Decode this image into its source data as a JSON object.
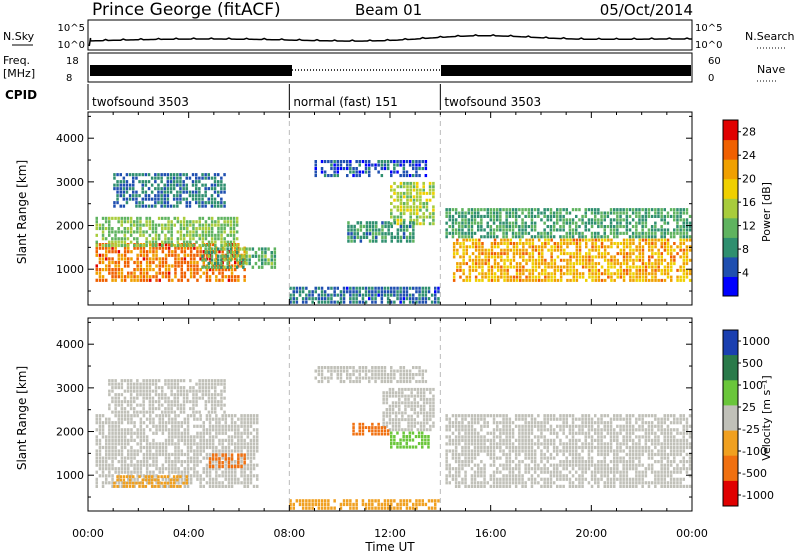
{
  "header": {
    "station": "Prince George (fitACF)",
    "beam": "Beam 01",
    "date": "05/Oct/2014"
  },
  "status_panel": {
    "nsky_label": "N.Sky",
    "nsky_ticks": [
      "10^5",
      "10^0"
    ],
    "nsearch_label": "N.Search",
    "freq_label": "Freq.",
    "freq_unit": "[MHz]",
    "freq_ticks": [
      "18",
      "8"
    ],
    "nave_ticks": [
      "60",
      "0"
    ],
    "nave_label": "Nave",
    "cpid_label": "CPID"
  },
  "cpid_segments": [
    {
      "label": "twofsound 3503",
      "start": "00:00",
      "end": "08:00"
    },
    {
      "label": "normal (fast) 151",
      "start": "08:00",
      "end": "14:00"
    },
    {
      "label": "twofsound 3503",
      "start": "14:00",
      "end": "24:00"
    }
  ],
  "colors": {
    "power_scale": [
      "#0000ff",
      "#1f4fb0",
      "#2f8f6f",
      "#5fb35f",
      "#a8cc3c",
      "#f0d000",
      "#f0a000",
      "#f06000",
      "#e00000"
    ],
    "velocity_scale": [
      "#1a3fb0",
      "#2a7a4a",
      "#6ac63a",
      "#c0c0b8",
      "#f0a020",
      "#f07010",
      "#e00000"
    ],
    "velocity_ground": "#c0c0b8"
  },
  "chart_data": [
    {
      "type": "heatmap",
      "name": "Power",
      "xlabel": "Time UT",
      "ylabel": "Slant Range [km]",
      "x_ticks": [
        "00:00",
        "04:00",
        "08:00",
        "12:00",
        "16:00",
        "20:00",
        "00:00"
      ],
      "xlim_hours": [
        0,
        24
      ],
      "y_ticks": [
        1000,
        2000,
        3000,
        4000
      ],
      "ylim": [
        180,
        4600
      ],
      "colorbar_label": "Power [dB]",
      "colorbar_ticks": [
        4,
        8,
        12,
        16,
        20,
        24,
        28
      ],
      "colorbar_range": [
        0,
        30
      ],
      "regions": [
        {
          "t0": 0.3,
          "t1": 6.3,
          "r0": 700,
          "r1": 1600,
          "v": 24
        },
        {
          "t0": 0.3,
          "t1": 6.0,
          "r0": 1500,
          "r1": 2200,
          "v": 13
        },
        {
          "t0": 1.0,
          "t1": 5.5,
          "r0": 2400,
          "r1": 3200,
          "v": 7
        },
        {
          "t0": 4.5,
          "t1": 7.5,
          "r0": 1000,
          "r1": 1500,
          "v": 11
        },
        {
          "t0": 9.0,
          "t1": 13.5,
          "r0": 3100,
          "r1": 3500,
          "v": 5
        },
        {
          "t0": 12.0,
          "t1": 13.8,
          "r0": 2000,
          "r1": 3000,
          "v": 15
        },
        {
          "t0": 10.3,
          "t1": 13.0,
          "r0": 1600,
          "r1": 2100,
          "v": 9
        },
        {
          "t0": 8.0,
          "t1": 14.0,
          "r0": 200,
          "r1": 600,
          "v": 6
        },
        {
          "t0": 14.5,
          "t1": 24.0,
          "r0": 700,
          "r1": 1700,
          "v": 21
        },
        {
          "t0": 14.2,
          "t1": 24.0,
          "r0": 1700,
          "r1": 2400,
          "v": 10
        }
      ]
    },
    {
      "type": "heatmap",
      "name": "Velocity",
      "xlabel": "Time UT",
      "ylabel": "Slant Range [km]",
      "x_ticks": [
        "00:00",
        "04:00",
        "08:00",
        "12:00",
        "16:00",
        "20:00",
        "00:00"
      ],
      "xlim_hours": [
        0,
        24
      ],
      "y_ticks": [
        1000,
        2000,
        3000,
        4000
      ],
      "ylim": [
        180,
        4600
      ],
      "colorbar_label": "Velocity [m s⁻¹]",
      "colorbar_ticks": [
        1000,
        500,
        100,
        25,
        -25,
        -100,
        -500,
        -1000
      ],
      "regions": [
        {
          "t0": 0.3,
          "t1": 6.8,
          "r0": 700,
          "r1": 2400,
          "v": 0
        },
        {
          "t0": 0.8,
          "t1": 5.5,
          "r0": 2400,
          "r1": 3200,
          "v": 0
        },
        {
          "t0": 4.8,
          "t1": 6.3,
          "r0": 1150,
          "r1": 1500,
          "v": -300
        },
        {
          "t0": 1.0,
          "t1": 4.0,
          "r0": 700,
          "r1": 1000,
          "v": -80
        },
        {
          "t0": 9.0,
          "t1": 13.5,
          "r0": 3100,
          "r1": 3500,
          "v": 0
        },
        {
          "t0": 11.7,
          "t1": 13.8,
          "r0": 2000,
          "r1": 3000,
          "v": 0
        },
        {
          "t0": 10.5,
          "t1": 12.0,
          "r0": 1900,
          "r1": 2200,
          "v": -300
        },
        {
          "t0": 12.0,
          "t1": 13.6,
          "r0": 1600,
          "r1": 2000,
          "v": 200
        },
        {
          "t0": 8.0,
          "t1": 14.0,
          "r0": 200,
          "r1": 450,
          "v": -60
        },
        {
          "t0": 14.2,
          "t1": 24.0,
          "r0": 700,
          "r1": 2400,
          "v": 0
        }
      ]
    }
  ]
}
